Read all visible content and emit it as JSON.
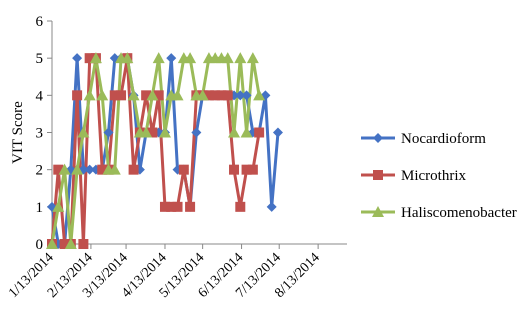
{
  "chart_data": {
    "type": "line",
    "title": "",
    "ylabel": "VIT Score",
    "xlabel": "",
    "ylim": [
      0,
      6
    ],
    "y_ticks": [
      0,
      1,
      2,
      3,
      4,
      5,
      6
    ],
    "x_ticks": [
      "1/13/2014",
      "2/13/2014",
      "3/13/2014",
      "4/13/2014",
      "5/13/2014",
      "6/13/2014",
      "7/13/2014",
      "8/13/2014"
    ],
    "x_ticks_numeric": [
      0,
      31,
      59,
      90,
      120,
      151,
      181,
      212
    ],
    "xlim": [
      0,
      235
    ],
    "legend_position": "right",
    "grid": false,
    "x": [
      0,
      5,
      10,
      15,
      20,
      25,
      30,
      35,
      40,
      45,
      50,
      55,
      60,
      65,
      70,
      75,
      80,
      85,
      90,
      95,
      100,
      105,
      110,
      115,
      120,
      125,
      130,
      135,
      140,
      145,
      150,
      155,
      160,
      165,
      170,
      175,
      180,
      185,
      190,
      195,
      200,
      205,
      210,
      215,
      220,
      225,
      230,
      235
    ],
    "series": [
      {
        "name": "Nocardioform",
        "color": "#4472C4",
        "marker": "diamond",
        "values": [
          1,
          0,
          0,
          2,
          5,
          2,
          2,
          2,
          2,
          3,
          5,
          5,
          5,
          4,
          2,
          3,
          3,
          3,
          3,
          5,
          2,
          2,
          1,
          3,
          4,
          4,
          4,
          4,
          4,
          4,
          4,
          4,
          3,
          3,
          4,
          1,
          3,
          null,
          null,
          null,
          null,
          null,
          null,
          null,
          null,
          null,
          null,
          null
        ]
      },
      {
        "name": "Microthrix",
        "color": "#C0504D",
        "marker": "square",
        "values": [
          0,
          2,
          0,
          0,
          4,
          0,
          5,
          5,
          2,
          2,
          4,
          4,
          5,
          2,
          3,
          4,
          3,
          4,
          1,
          1,
          1,
          2,
          1,
          4,
          4,
          4,
          4,
          4,
          4,
          2,
          1,
          2,
          2,
          3,
          null,
          null,
          null,
          null,
          null,
          null,
          null,
          null,
          null,
          null,
          null,
          null,
          null,
          null
        ]
      },
      {
        "name": "Haliscomenobacter",
        "color": "#9BBB59",
        "marker": "triangle",
        "values": [
          0,
          1,
          2,
          0,
          2,
          3,
          4,
          5,
          4,
          2,
          2,
          5,
          5,
          4,
          3,
          3,
          4,
          5,
          3,
          4,
          4,
          5,
          5,
          4,
          4,
          5,
          5,
          5,
          5,
          3,
          5,
          3,
          5,
          4,
          null,
          null,
          null,
          null,
          null,
          null,
          null,
          null,
          null,
          null,
          null,
          null,
          null,
          null
        ]
      }
    ]
  }
}
